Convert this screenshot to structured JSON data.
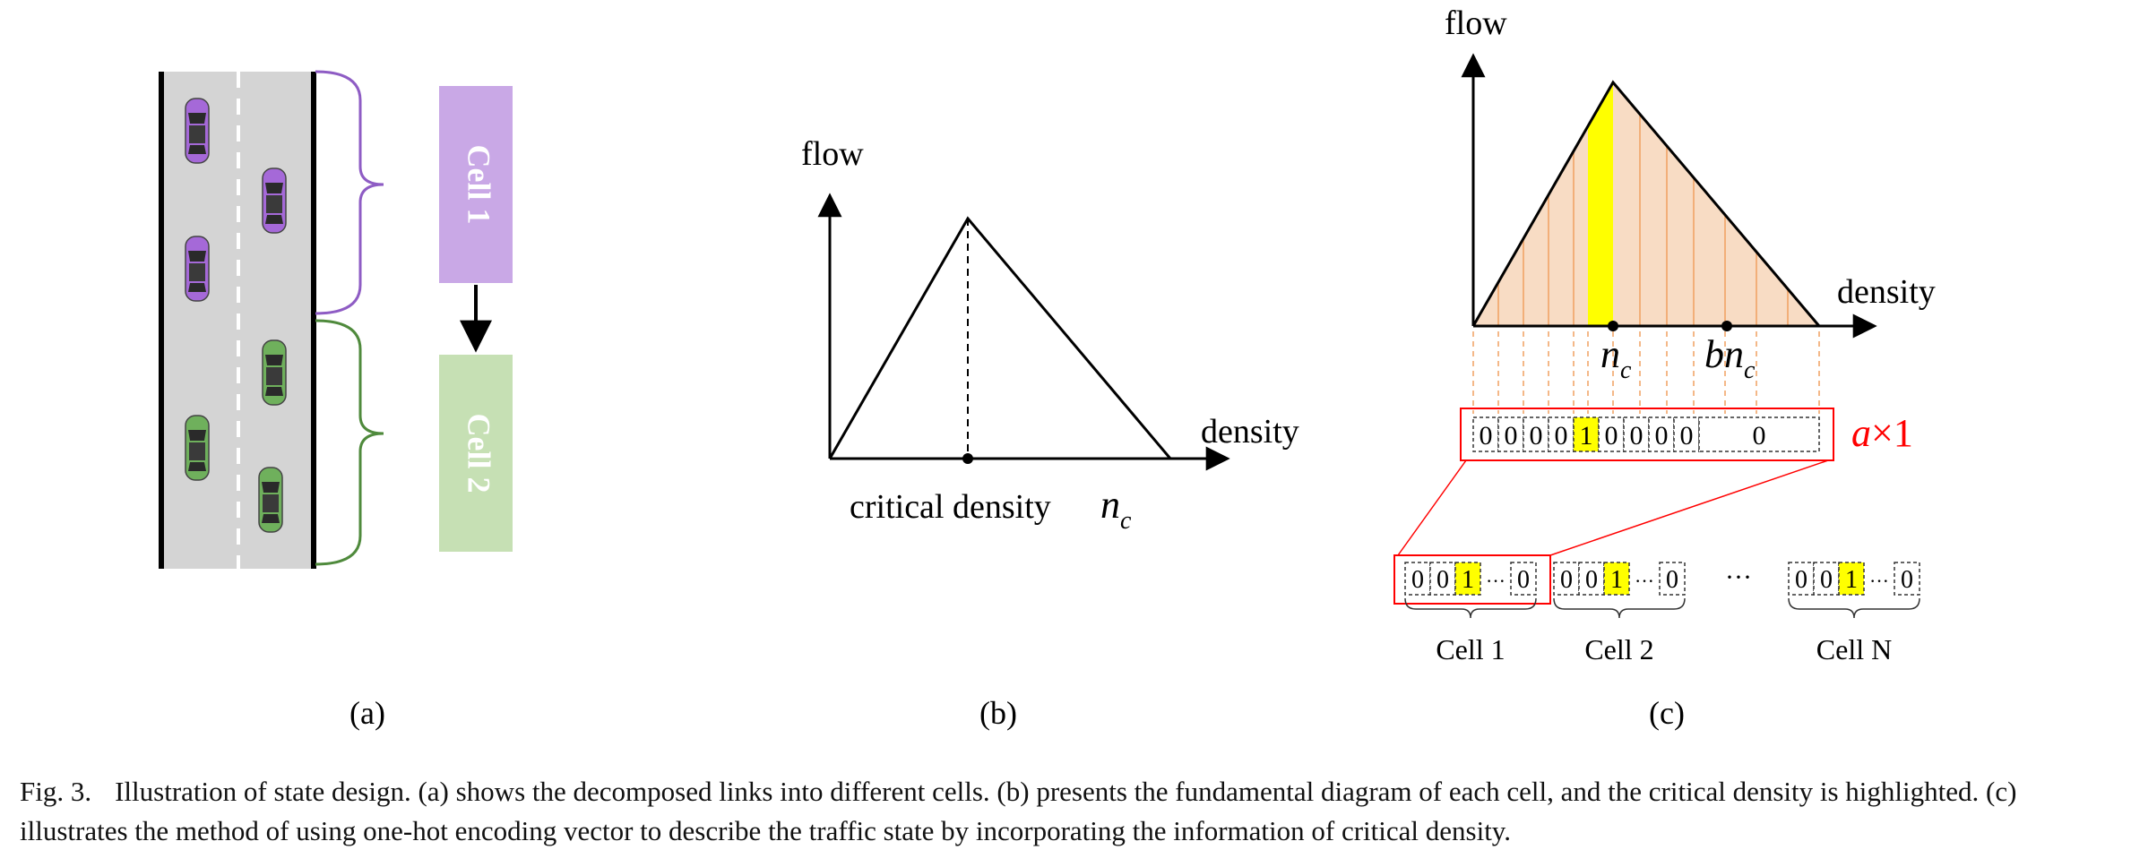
{
  "panel_a": {
    "cell1_label": "Cell 1",
    "cell2_label": "Cell 2",
    "cell1_color": "#c9a8e6",
    "cell2_color": "#c6e0b4",
    "car1_color": "#a569d8",
    "car2_color": "#6fb05c",
    "brace1_color": "#8e5cc4",
    "brace2_color": "#4f8a3c",
    "road_color": "#d4d4d4",
    "sublabel": "(a)"
  },
  "panel_b": {
    "y_label": "flow",
    "x_label": "density",
    "critical_label": "critical density",
    "critical_symbol": "n",
    "critical_sub": "c",
    "sublabel": "(b)"
  },
  "panel_c": {
    "y_label": "flow",
    "x_label": "density",
    "nc_symbol": "n",
    "nc_sub": "c",
    "bnc_prefix": "b",
    "bnc_symbol": "n",
    "bnc_sub": "c",
    "vector_values": [
      "0",
      "0",
      "0",
      "0",
      "1",
      "0",
      "0",
      "0",
      "0",
      "0"
    ],
    "vector_size_a": "a",
    "vector_size_rest": "×1",
    "cell_vector_values": [
      "0",
      "0",
      "1",
      "···",
      "0"
    ],
    "cells": [
      "Cell 1",
      "Cell 2",
      "Cell N"
    ],
    "cells_ellipsis": "···",
    "highlight_color": "#ffff00",
    "fill_color": "#f8dcc4",
    "stripe_color": "#f0a060",
    "red_color": "#ff0000",
    "sublabel": "(c)"
  },
  "caption": {
    "label": "Fig. 3.",
    "text": "Illustration of state design. (a) shows the decomposed links into different cells. (b) presents the fundamental diagram of each cell, and the critical density is highlighted. (c) illustrates the method of using one-hot encoding vector to describe the traffic state by incorporating the information of critical density."
  }
}
